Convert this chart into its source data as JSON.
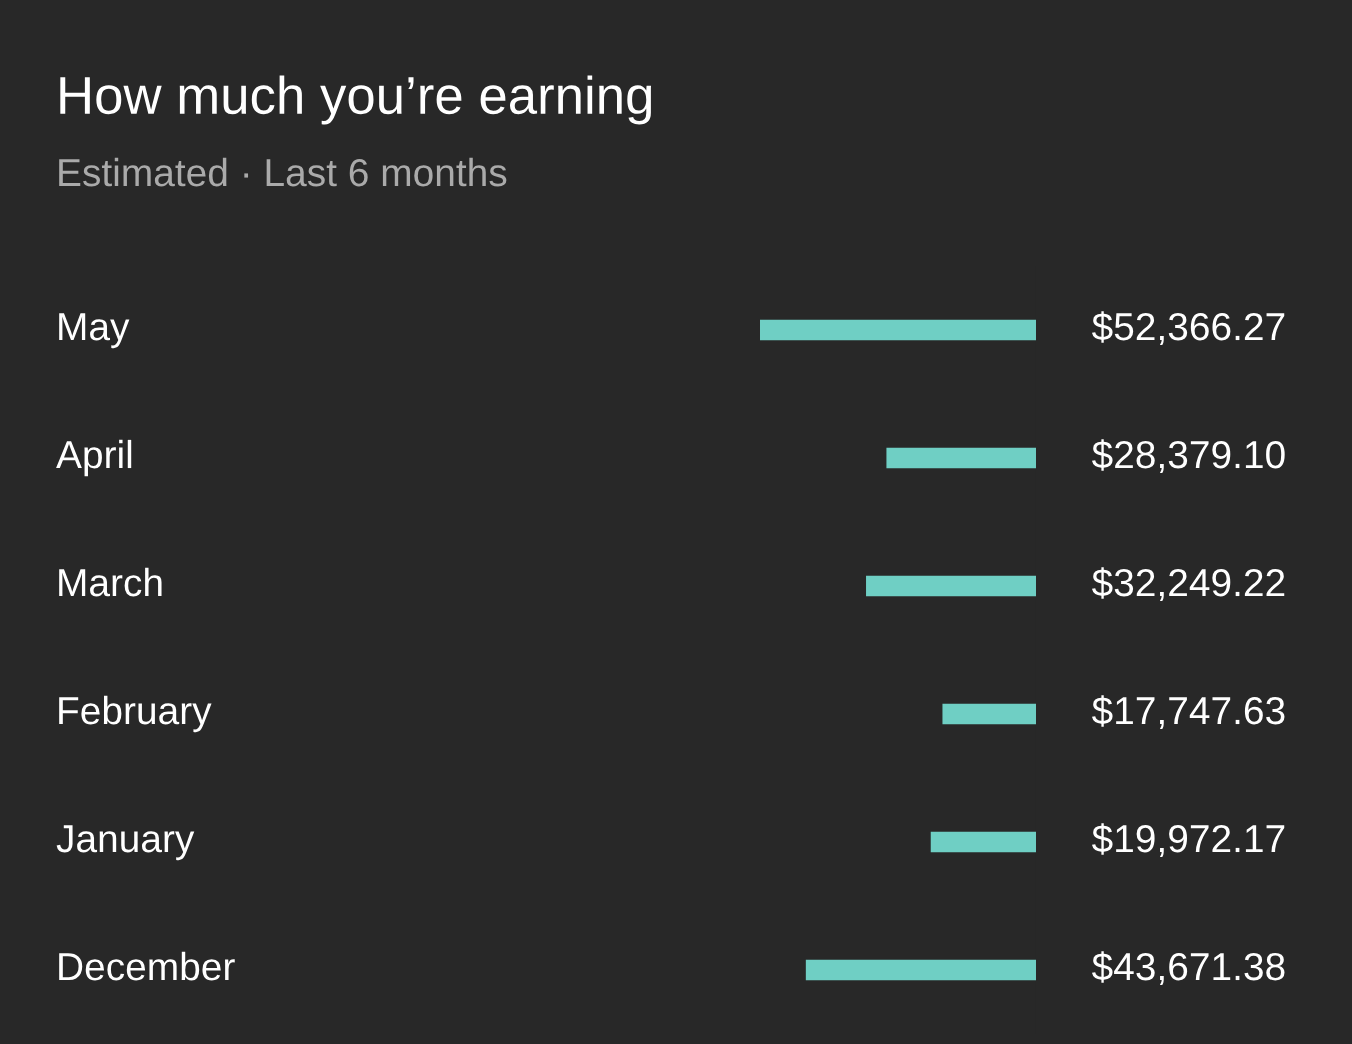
{
  "chart_data": {
    "type": "bar",
    "orientation": "horizontal",
    "title": "How much you’re earning",
    "subtitle": "Estimated · Last 6 months",
    "categories": [
      "May",
      "April",
      "March",
      "February",
      "January",
      "December"
    ],
    "values": [
      52366.27,
      28379.1,
      32249.22,
      17747.63,
      19972.17,
      43671.38
    ],
    "value_labels": [
      "$52,366.27",
      "$28,379.10",
      "$32,249.22",
      "$17,747.63",
      "$19,972.17",
      "$43,671.38"
    ],
    "color": "#6fcfc4"
  }
}
